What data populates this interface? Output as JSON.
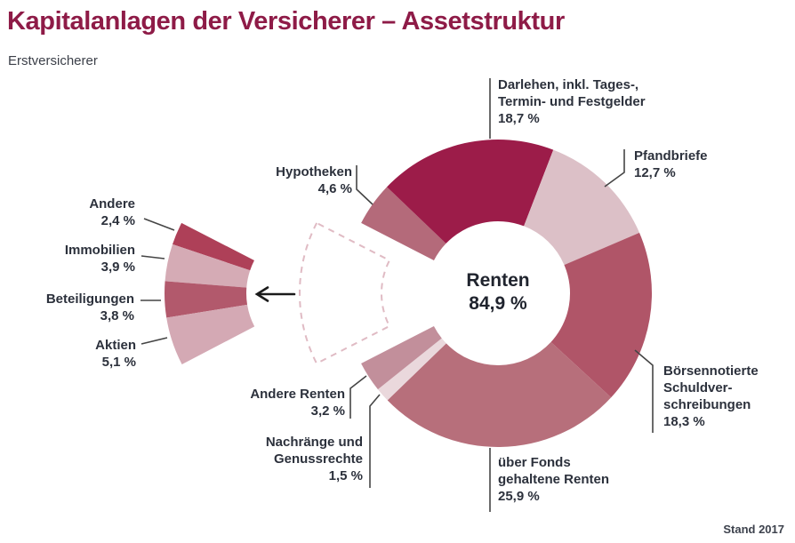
{
  "page": {
    "title": "Kapitalanlagen der Versicherer – Assetstruktur",
    "subtitle": "Erstversicherer",
    "source_note": "Stand 2017"
  },
  "colors": {
    "title": "#8e1b47",
    "label_text": "#2c313c",
    "callout_line": "#454545",
    "dashed_wedge": "#e0bbc4",
    "arrow": "#1a1a1a"
  },
  "chart_data": {
    "type": "pie",
    "variant": "donut-with-exploded-wedge",
    "title": "Kapitalanlagen der Versicherer – Assetstruktur",
    "subtitle": "Erstversicherer",
    "unit": "%",
    "center_label": "Renten\n84,9 %",
    "center_value": 84.9,
    "source_note": "Stand 2017",
    "donut_segments": [
      {
        "id": "hypotheken",
        "label": "Hypotheken",
        "value": 4.6,
        "callout": "Hypotheken\n4,6 %",
        "color": "#b46a7a"
      },
      {
        "id": "darlehen",
        "label": "Darlehen, inkl. Tages-, Termin- und Festgelder",
        "value": 18.7,
        "callout": "Darlehen, inkl. Tages-,\nTermin- und Festgelder\n18,7 %",
        "color": "#9c1c49"
      },
      {
        "id": "pfandbriefe",
        "label": "Pfandbriefe",
        "value": 12.7,
        "callout": "Pfandbriefe\n12,7 %",
        "color": "#dcc0c7"
      },
      {
        "id": "boersennotierte",
        "label": "Börsennotierte Schuldverschreibungen",
        "value": 18.3,
        "callout": "Börsennotierte\nSchuldver-\nschreibungen\n18,3 %",
        "color": "#b05568"
      },
      {
        "id": "ueber-fonds",
        "label": "über Fonds gehaltene Renten",
        "value": 25.9,
        "callout": "über Fonds\ngehaltene Renten\n25,9 %",
        "color": "#b76f7b"
      },
      {
        "id": "nachraenge",
        "label": "Nachränge und Genussrechte",
        "value": 1.5,
        "callout": "Nachränge und\nGenussrechte\n1,5 %",
        "color": "#ead8dc"
      },
      {
        "id": "andere-renten",
        "label": "Andere Renten",
        "value": 3.2,
        "callout": "Andere Renten\n3,2 %",
        "color": "#c28f9b"
      }
    ],
    "exploded_total": 15.1,
    "exploded_segments": [
      {
        "id": "andere",
        "label": "Andere",
        "value": 2.4,
        "callout": "Andere\n2,4 %",
        "color": "#ae4058"
      },
      {
        "id": "immobilien",
        "label": "Immobilien",
        "value": 3.9,
        "callout": "Immobilien\n3,9 %",
        "color": "#d5abb5"
      },
      {
        "id": "beteiligungen",
        "label": "Beteiligungen",
        "value": 3.8,
        "callout": "Beteiligungen\n3,8 %",
        "color": "#b2596c"
      },
      {
        "id": "aktien",
        "label": "Aktien",
        "value": 5.1,
        "callout": "Aktien\n5,1 %",
        "color": "#d4a9b4"
      }
    ]
  }
}
